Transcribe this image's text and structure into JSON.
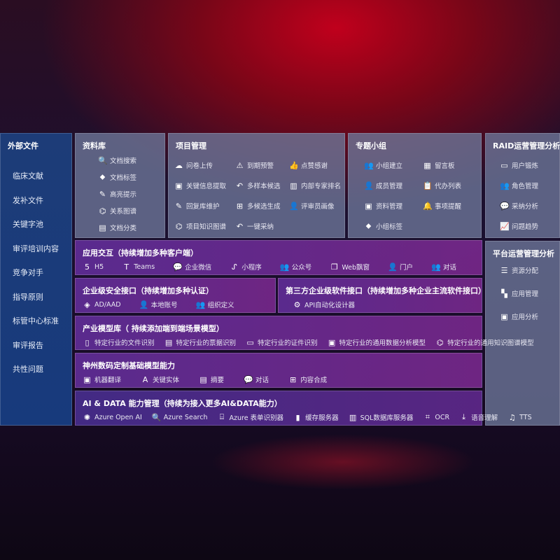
{
  "sidebar": {
    "title": "外部文件",
    "items": [
      "临床文献",
      "发补文件",
      "关键字池",
      "审评培训内容",
      "竞争对手",
      "指导原则",
      "标管中心标准",
      "审评报告",
      "共性问题"
    ]
  },
  "library": {
    "title": "资料库",
    "items": [
      {
        "icon": "document-search-icon",
        "g": "🔍",
        "label": "文档搜索"
      },
      {
        "icon": "tag-icon",
        "g": "⬥",
        "label": "文档标签"
      },
      {
        "icon": "pen-icon",
        "g": "✎",
        "label": "高亮提示"
      },
      {
        "icon": "graph-icon",
        "g": "⌬",
        "label": "关系图谱"
      },
      {
        "icon": "document-icon",
        "g": "▤",
        "label": "文档分类"
      }
    ]
  },
  "project": {
    "title": "项目管理",
    "items": [
      {
        "icon": "cloud-upload-icon",
        "g": "☁",
        "label": "问卷上传"
      },
      {
        "icon": "alarm-icon",
        "g": "⚠",
        "label": "到期预警"
      },
      {
        "icon": "thumbs-up-icon",
        "g": "👍",
        "label": "点赞感谢"
      },
      {
        "icon": "window-icon",
        "g": "▣",
        "label": "关键信息提取"
      },
      {
        "icon": "reply-icon",
        "g": "↶",
        "label": "多样本候选"
      },
      {
        "icon": "ranking-icon",
        "g": "▥",
        "label": "内部专家排名"
      },
      {
        "icon": "edit-icon",
        "g": "✎",
        "label": "回复库维护"
      },
      {
        "icon": "puzzle-icon",
        "g": "⊞",
        "label": "多候选生成"
      },
      {
        "icon": "user-icon",
        "g": "👤",
        "label": "评审员画像"
      },
      {
        "icon": "graph-icon",
        "g": "⌬",
        "label": "项目知识图谱"
      },
      {
        "icon": "reply-icon",
        "g": "↶",
        "label": "一键采纳"
      }
    ]
  },
  "group": {
    "title": "专题小组",
    "items": [
      {
        "icon": "users-icon",
        "g": "👥",
        "label": "小组建立"
      },
      {
        "icon": "bbs-icon",
        "g": "▦",
        "label": "留言板"
      },
      {
        "icon": "user-add-icon",
        "g": "👤",
        "label": "成员管理"
      },
      {
        "icon": "clipboard-icon",
        "g": "📋",
        "label": "代办列表"
      },
      {
        "icon": "folder-icon",
        "g": "▣",
        "label": "资料管理"
      },
      {
        "icon": "bell-icon",
        "g": "🔔",
        "label": "事项提醒"
      },
      {
        "icon": "tag-icon",
        "g": "⬥",
        "label": "小组标签"
      }
    ]
  },
  "raid": {
    "title": "RAID运营管理分析",
    "items": [
      {
        "icon": "id-card-icon",
        "g": "▭",
        "label": "用户锻炼"
      },
      {
        "icon": "users-icon",
        "g": "👥",
        "label": "角色管理"
      },
      {
        "icon": "qa-icon",
        "g": "💬",
        "label": "采纳分析"
      },
      {
        "icon": "trend-icon",
        "g": "📈",
        "label": "问题趋势"
      }
    ]
  },
  "platform": {
    "title": "平台运营管理分析",
    "items": [
      {
        "icon": "checklist-icon",
        "g": "☰",
        "label": "资源分配"
      },
      {
        "icon": "apps-icon",
        "g": "▚",
        "label": "应用管理"
      },
      {
        "icon": "chart-icon",
        "g": "▣",
        "label": "应用分析"
      }
    ]
  },
  "interaction": {
    "title": "应用交互（持续增加多种客户端）",
    "items": [
      {
        "icon": "html5-icon",
        "g": "5",
        "label": "H5"
      },
      {
        "icon": "teams-icon",
        "g": "T",
        "label": "Teams"
      },
      {
        "icon": "wechat-icon",
        "g": "💬",
        "label": "企业微信"
      },
      {
        "icon": "miniprogram-icon",
        "g": "ᔑ",
        "label": "小程序"
      },
      {
        "icon": "users-icon",
        "g": "👥",
        "label": "公众号"
      },
      {
        "icon": "window-icon",
        "g": "❐",
        "label": "Web飘窗"
      },
      {
        "icon": "portal-icon",
        "g": "👤",
        "label": "门户"
      },
      {
        "icon": "chat-icon",
        "g": "👥",
        "label": "对话"
      }
    ]
  },
  "security": {
    "title": "企业级安全接口（持续增加多种认证）",
    "items": [
      {
        "icon": "diamond-icon",
        "g": "◈",
        "label": "AD/AAD"
      },
      {
        "icon": "user-icon",
        "g": "👤",
        "label": "本地账号"
      },
      {
        "icon": "org-icon",
        "g": "👥",
        "label": "组织定义"
      }
    ]
  },
  "thirdparty": {
    "title": "第三方企业级软件接口（持续增加多种企业主流软件接口）",
    "items": [
      {
        "icon": "gear-icon",
        "g": "⚙",
        "label": "API自动化设计器"
      }
    ]
  },
  "industry": {
    "title": "产业模型库（ 持续添加端到端场景模型）",
    "items": [
      {
        "icon": "file-icon",
        "g": "▯",
        "label": "特定行业的文件识别"
      },
      {
        "icon": "receipt-icon",
        "g": "▤",
        "label": "特定行业的票据识别"
      },
      {
        "icon": "id-card-icon",
        "g": "▭",
        "label": "特定行业的证件识别"
      },
      {
        "icon": "image-icon",
        "g": "▣",
        "label": "特定行业的通用数据分析模型"
      },
      {
        "icon": "graph-icon",
        "g": "⌬",
        "label": "特定行业的通用知识图谱模型"
      }
    ]
  },
  "custom": {
    "title": "神州数码定制基础模型能力",
    "items": [
      {
        "icon": "translate-icon",
        "g": "▣",
        "label": "机器翻译"
      },
      {
        "icon": "entity-icon",
        "g": "A",
        "label": "关键实体"
      },
      {
        "icon": "summary-icon",
        "g": "▤",
        "label": "摘要"
      },
      {
        "icon": "chat-icon",
        "g": "💬",
        "label": "对话"
      },
      {
        "icon": "puzzle-icon",
        "g": "⊞",
        "label": "内容合成"
      }
    ]
  },
  "aidata": {
    "title": "AI & DATA 能力管理（持续为接入更多AI&DATA能力）",
    "items": [
      {
        "icon": "openai-icon",
        "g": "✺",
        "label": "Azure Open AI"
      },
      {
        "icon": "search-doc-icon",
        "g": "🔍",
        "label": "Azure Search"
      },
      {
        "icon": "form-icon",
        "g": "⌸",
        "label": "Azure 表单识别器"
      },
      {
        "icon": "cache-icon",
        "g": "▮",
        "label": "缓存服务器"
      },
      {
        "icon": "database-icon",
        "g": "▥",
        "label": "SQL数据库服务器"
      },
      {
        "icon": "ocr-icon",
        "g": "⌗",
        "label": "OCR"
      },
      {
        "icon": "speech-icon",
        "g": "⤓",
        "label": "语音理解"
      },
      {
        "icon": "tts-icon",
        "g": "♫",
        "label": "TTS"
      }
    ]
  }
}
